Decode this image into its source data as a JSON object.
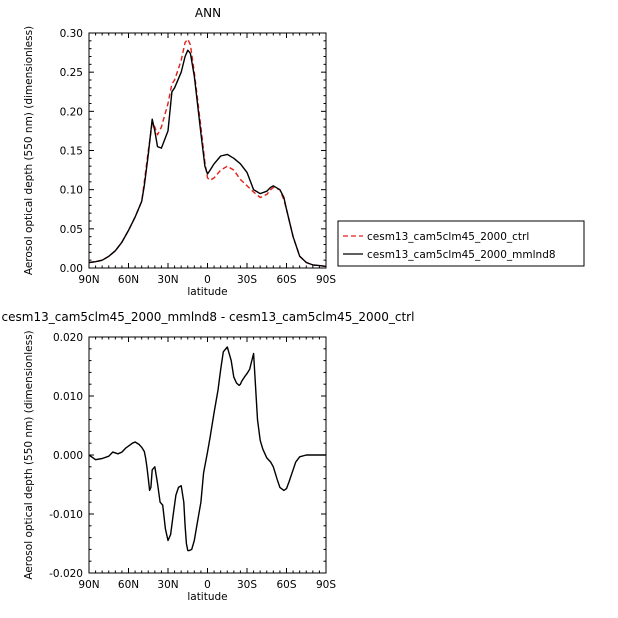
{
  "chart_data": [
    {
      "type": "line",
      "title": "ANN",
      "xlabel": "latitude",
      "ylabel": "Aerosol optical depth (550 nm) (dimensionless)",
      "xticks": [
        "90N",
        "60N",
        "30N",
        "0",
        "30S",
        "60S",
        "90S"
      ],
      "yticks": [
        "0.00",
        "0.05",
        "0.10",
        "0.15",
        "0.20",
        "0.25",
        "0.30"
      ],
      "xlim": [
        90,
        -90
      ],
      "ylim": [
        0,
        0.3
      ],
      "legend_position": "right",
      "series": [
        {
          "name": "cesm13_cam5clm45_2000_ctrl",
          "color": "#e0201b",
          "dash": "dashed",
          "x": [
            90,
            85,
            80,
            75,
            70,
            65,
            60,
            55,
            50,
            48,
            45,
            42,
            40,
            38,
            35,
            30,
            27,
            25,
            20,
            17,
            15,
            13,
            10,
            5,
            2,
            0,
            -2,
            -5,
            -10,
            -15,
            -20,
            -25,
            -30,
            -35,
            -40,
            -45,
            -48,
            -50,
            -55,
            -58,
            -60,
            -65,
            -70,
            -75,
            -80,
            -85,
            -90
          ],
          "y": [
            0.007,
            0.008,
            0.01,
            0.015,
            0.022,
            0.033,
            0.048,
            0.065,
            0.085,
            0.11,
            0.15,
            0.185,
            0.18,
            0.17,
            0.18,
            0.21,
            0.235,
            0.24,
            0.265,
            0.288,
            0.292,
            0.285,
            0.25,
            0.18,
            0.135,
            0.115,
            0.112,
            0.115,
            0.125,
            0.13,
            0.125,
            0.113,
            0.105,
            0.097,
            0.09,
            0.094,
            0.1,
            0.103,
            0.1,
            0.087,
            0.075,
            0.04,
            0.015,
            0.007,
            0.004,
            0.003,
            0.002
          ]
        },
        {
          "name": "cesm13_cam5clm45_2000_mmlnd8",
          "color": "#000000",
          "dash": "solid",
          "x": [
            90,
            85,
            80,
            75,
            70,
            65,
            60,
            55,
            50,
            48,
            45,
            42,
            40,
            38,
            35,
            30,
            27,
            25,
            20,
            17,
            15,
            13,
            10,
            5,
            2,
            0,
            -2,
            -5,
            -10,
            -15,
            -20,
            -25,
            -30,
            -35,
            -40,
            -45,
            -48,
            -50,
            -55,
            -58,
            -60,
            -65,
            -70,
            -75,
            -80,
            -85,
            -90
          ],
          "y": [
            0.007,
            0.008,
            0.01,
            0.015,
            0.022,
            0.033,
            0.048,
            0.065,
            0.085,
            0.105,
            0.145,
            0.19,
            0.175,
            0.155,
            0.153,
            0.175,
            0.225,
            0.23,
            0.25,
            0.27,
            0.278,
            0.274,
            0.245,
            0.172,
            0.13,
            0.12,
            0.125,
            0.133,
            0.143,
            0.145,
            0.14,
            0.133,
            0.122,
            0.1,
            0.095,
            0.098,
            0.103,
            0.105,
            0.1,
            0.09,
            0.075,
            0.04,
            0.015,
            0.007,
            0.004,
            0.003,
            0.002
          ]
        }
      ]
    },
    {
      "type": "line",
      "title": "cesm13_cam5clm45_2000_mmlnd8 - cesm13_cam5clm45_2000_ctrl",
      "xlabel": "latitude",
      "ylabel": "Aerosol optical depth (550 nm) (dimensionless)",
      "xticks": [
        "90N",
        "60N",
        "30N",
        "0",
        "30S",
        "60S",
        "90S"
      ],
      "yticks": [
        "-0.020",
        "-0.010",
        "0.000",
        "0.010",
        "0.020"
      ],
      "xlim": [
        90,
        -90
      ],
      "ylim": [
        -0.02,
        0.02
      ],
      "series": [
        {
          "color": "#000000",
          "dash": "solid",
          "x": [
            90,
            85,
            80,
            75,
            72,
            68,
            65,
            62,
            60,
            57,
            55,
            52,
            50,
            48,
            47,
            46,
            45,
            44,
            43,
            42,
            40,
            38,
            36,
            34,
            32,
            30,
            28,
            26,
            24,
            22,
            20,
            18,
            17,
            16,
            15,
            14,
            12,
            10,
            8,
            5,
            3,
            0,
            -2,
            -5,
            -8,
            -10,
            -12,
            -15,
            -18,
            -20,
            -22,
            -24,
            -25,
            -26,
            -28,
            -30,
            -32,
            -35,
            -38,
            -40,
            -42,
            -45,
            -48,
            -50,
            -53,
            -55,
            -58,
            -60,
            -62,
            -65,
            -67,
            -70,
            -75,
            -80,
            -85,
            -90
          ],
          "y": [
            0.0,
            -0.0008,
            -0.0006,
            -0.0002,
            0.0005,
            0.0002,
            0.0005,
            0.0012,
            0.0015,
            0.002,
            0.0022,
            0.0018,
            0.0013,
            0.0006,
            -0.0005,
            -0.002,
            -0.004,
            -0.006,
            -0.0055,
            -0.0025,
            -0.002,
            -0.0048,
            -0.008,
            -0.0085,
            -0.0125,
            -0.0145,
            -0.0135,
            -0.01,
            -0.0068,
            -0.0055,
            -0.0052,
            -0.008,
            -0.012,
            -0.015,
            -0.0162,
            -0.0162,
            -0.016,
            -0.0145,
            -0.0118,
            -0.008,
            -0.003,
            0.0005,
            0.003,
            0.0072,
            0.011,
            0.0145,
            0.0175,
            0.0183,
            0.016,
            0.0132,
            0.0122,
            0.0118,
            0.012,
            0.0125,
            0.0132,
            0.0138,
            0.0145,
            0.0172,
            0.006,
            0.0025,
            0.001,
            -0.0005,
            -0.0012,
            -0.002,
            -0.0042,
            -0.0055,
            -0.006,
            -0.0057,
            -0.0045,
            -0.0025,
            -0.0012,
            -0.0003,
            0.0,
            0.0,
            0.0,
            0.0
          ]
        }
      ]
    }
  ]
}
